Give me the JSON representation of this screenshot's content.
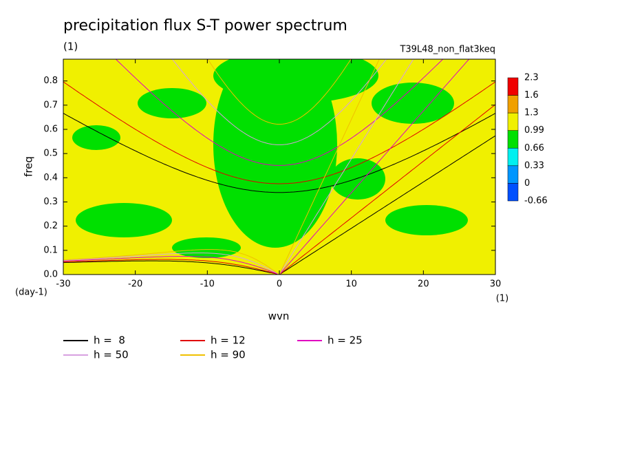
{
  "chart_data": {
    "type": "contour",
    "title": "precipitation flux S-T power spectrum",
    "subtitle": "(1)",
    "run_label": "T39L48_non_flat3keq",
    "x_label": "wvn",
    "x_units": "(1)",
    "y_label": "freq",
    "y_units": "(day-1)",
    "xlim": [
      -30,
      30
    ],
    "xticks": [
      -30,
      -20,
      -10,
      0,
      10,
      20,
      30
    ],
    "ylim": [
      0,
      0.89
    ],
    "yticks": [
      {
        "value": 0,
        "label": "0.0"
      },
      0.1,
      0.2,
      0.3,
      0.4,
      0.5,
      0.6,
      0.7,
      0.8
    ],
    "levels": [
      2.3,
      1.6,
      1.3,
      0.99,
      0.66,
      0.33,
      0,
      -0.66
    ],
    "level_colors": [
      "#f00000",
      "#f0a000",
      "#f0f000",
      "#00e000",
      "#00f0f0",
      "#0096ff",
      "#0050ff"
    ],
    "series": [
      {
        "name": "h =  8",
        "h": 8,
        "color": "#000000"
      },
      {
        "name": "h = 12",
        "h": 12,
        "color": "#e00000"
      },
      {
        "name": "h = 25",
        "h": 25,
        "color": "#e000c0"
      },
      {
        "name": "h = 50",
        "h": 50,
        "color": "#d8a0e0"
      },
      {
        "name": "h = 90",
        "h": 90,
        "color": "#f0c000"
      }
    ]
  }
}
